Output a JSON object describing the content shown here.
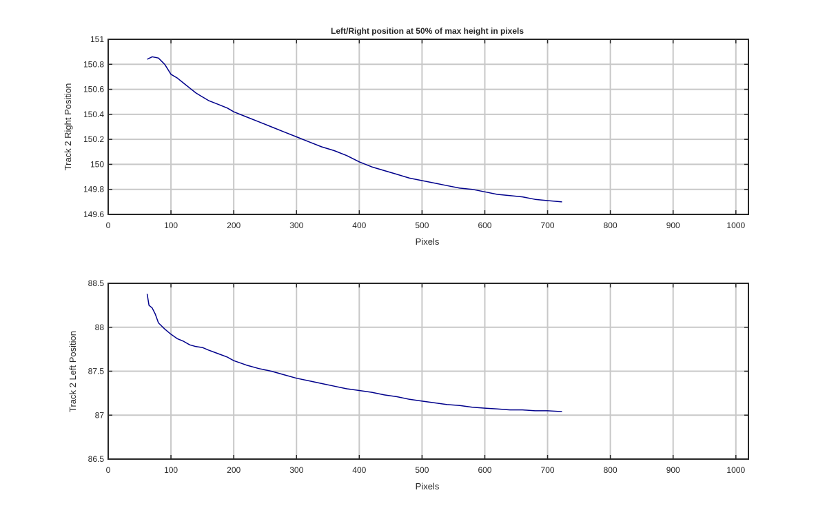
{
  "chart_data": [
    {
      "type": "line",
      "title": "Left/Right position at 50% of max height in pixels",
      "xlabel": "Pixels",
      "ylabel": "Track 2 Right Position",
      "xlim": [
        0,
        1020
      ],
      "ylim": [
        149.6,
        151
      ],
      "xticks": [
        0,
        100,
        200,
        300,
        400,
        500,
        600,
        700,
        800,
        900,
        1000
      ],
      "yticks": [
        149.6,
        149.8,
        150,
        150.2,
        150.4,
        150.6,
        150.8,
        151
      ],
      "grid": true,
      "color": "#00008b",
      "series": [
        {
          "x": [
            62,
            70,
            80,
            90,
            100,
            110,
            120,
            130,
            140,
            150,
            160,
            175,
            190,
            200,
            220,
            240,
            260,
            280,
            300,
            320,
            340,
            360,
            380,
            400,
            420,
            440,
            460,
            480,
            500,
            520,
            540,
            560,
            580,
            600,
            620,
            640,
            660,
            680,
            700,
            723
          ],
          "y": [
            150.84,
            150.86,
            150.85,
            150.8,
            150.72,
            150.69,
            150.65,
            150.61,
            150.57,
            150.54,
            150.51,
            150.48,
            150.45,
            150.42,
            150.38,
            150.34,
            150.3,
            150.26,
            150.22,
            150.18,
            150.14,
            150.11,
            150.07,
            150.02,
            149.98,
            149.95,
            149.92,
            149.89,
            149.87,
            149.85,
            149.83,
            149.81,
            149.8,
            149.78,
            149.76,
            149.75,
            149.74,
            149.72,
            149.71,
            149.7
          ]
        }
      ]
    },
    {
      "type": "line",
      "title": "",
      "xlabel": "Pixels",
      "ylabel": "Track 2 Left Position",
      "xlim": [
        0,
        1020
      ],
      "ylim": [
        86.5,
        88.5
      ],
      "xticks": [
        0,
        100,
        200,
        300,
        400,
        500,
        600,
        700,
        800,
        900,
        1000
      ],
      "yticks": [
        86.5,
        87,
        87.5,
        88,
        88.5
      ],
      "grid": true,
      "color": "#00008b",
      "series": [
        {
          "x": [
            62,
            65,
            70,
            75,
            80,
            90,
            100,
            110,
            120,
            130,
            140,
            150,
            160,
            175,
            190,
            200,
            220,
            240,
            260,
            280,
            300,
            320,
            340,
            360,
            380,
            400,
            420,
            440,
            460,
            480,
            500,
            520,
            540,
            560,
            580,
            600,
            620,
            640,
            660,
            680,
            700,
            723
          ],
          "y": [
            88.38,
            88.25,
            88.22,
            88.15,
            88.05,
            87.98,
            87.92,
            87.87,
            87.84,
            87.8,
            87.78,
            87.77,
            87.74,
            87.7,
            87.66,
            87.62,
            87.57,
            87.53,
            87.5,
            87.46,
            87.42,
            87.39,
            87.36,
            87.33,
            87.3,
            87.28,
            87.26,
            87.23,
            87.21,
            87.18,
            87.16,
            87.14,
            87.12,
            87.11,
            87.09,
            87.08,
            87.07,
            87.06,
            87.06,
            87.05,
            87.05,
            87.04
          ]
        }
      ]
    }
  ]
}
